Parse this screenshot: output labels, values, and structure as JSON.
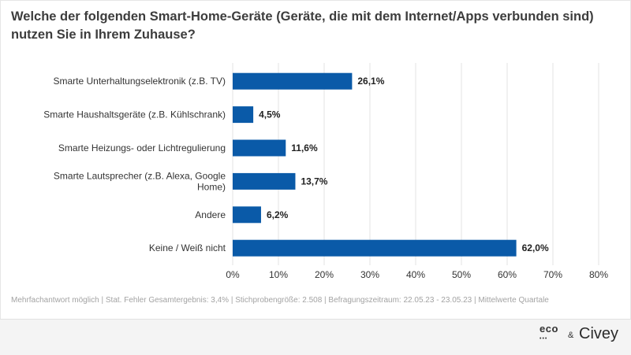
{
  "header": {
    "title_line1": "Welche der folgenden Smart-Home-Geräte (Geräte, die mit dem Internet/Apps verbunden sind)",
    "title_line2": "nutzen Sie in Ihrem Zuhause?"
  },
  "chart_data": {
    "type": "bar",
    "orientation": "horizontal",
    "title": "Welche der folgenden Smart-Home-Geräte (Geräte, die mit dem Internet/Apps verbunden sind) nutzen Sie in Ihrem Zuhause?",
    "categories": [
      [
        "Smarte Unterhaltungselektronik (z.B. TV)"
      ],
      [
        "Smarte Haushaltsgeräte (z.B. Kühlschrank)"
      ],
      [
        "Smarte Heizungs- oder Lichtregulierung"
      ],
      [
        "Smarte Lautsprecher (z.B. Alexa, Google",
        "Home)"
      ],
      [
        "Andere"
      ],
      [
        "Keine / Weiß nicht"
      ]
    ],
    "values": [
      26.1,
      4.5,
      11.6,
      13.7,
      6.2,
      62.0
    ],
    "value_labels": [
      "26,1%",
      "4,5%",
      "11,6%",
      "13,7%",
      "6,2%",
      "62,0%"
    ],
    "xlim": [
      0,
      80
    ],
    "xticks": [
      "0%",
      "10%",
      "20%",
      "30%",
      "40%",
      "50%",
      "60%",
      "70%",
      "80%"
    ],
    "grid": true,
    "bar_color": "#0a5aa8",
    "xlabel": "",
    "ylabel": ""
  },
  "footnote": "Mehrfachantwort möglich | Stat. Fehler Gesamtergebnis: 3,4% | Stichprobengröße: 2.508 | Befragungszeitraum: 22.05.23 - 23.05.23 | Mittelwerte Quartale",
  "footer": {
    "logo_eco": "eco",
    "logo_amp": "&",
    "logo_civey": "Civey"
  }
}
